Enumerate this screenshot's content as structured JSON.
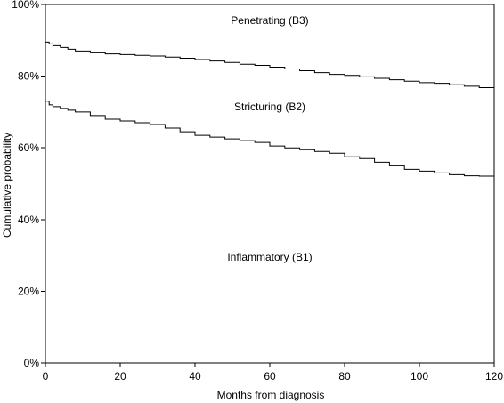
{
  "chart_data": {
    "type": "line",
    "title": "",
    "xlabel": "Months from diagnosis",
    "ylabel": "Cumulative probability",
    "xlim": [
      0,
      120
    ],
    "ylim": [
      0,
      100
    ],
    "x_ticks": [
      0,
      20,
      40,
      60,
      80,
      100,
      120
    ],
    "y_ticks": [
      0,
      20,
      40,
      60,
      80,
      100
    ],
    "y_tick_labels": [
      "0%",
      "20%",
      "40%",
      "60%",
      "80%",
      "100%"
    ],
    "line_color": "#000000",
    "series": [
      {
        "x": [
          0,
          1,
          2,
          4,
          6,
          8,
          12,
          16,
          20,
          24,
          28,
          32,
          36,
          40,
          44,
          48,
          52,
          56,
          60,
          64,
          68,
          72,
          76,
          80,
          84,
          88,
          92,
          96,
          100,
          104,
          108,
          112,
          116,
          120
        ],
        "values": [
          89.5,
          89,
          88.5,
          88,
          87.5,
          87,
          86.5,
          86.2,
          86,
          85.8,
          85.6,
          85.3,
          85,
          84.6,
          84.2,
          83.8,
          83.3,
          83,
          82.5,
          82,
          81.5,
          81,
          80.5,
          80.2,
          79.8,
          79.4,
          79,
          78.6,
          78.2,
          78,
          77.6,
          77.2,
          76.8,
          76.5
        ]
      },
      {
        "x": [
          0,
          1,
          2,
          4,
          6,
          8,
          12,
          16,
          20,
          24,
          28,
          32,
          36,
          40,
          44,
          48,
          52,
          56,
          60,
          64,
          68,
          72,
          76,
          80,
          84,
          88,
          92,
          96,
          100,
          104,
          108,
          112,
          116,
          120
        ],
        "values": [
          73,
          72,
          71.5,
          71,
          70.5,
          70,
          69,
          68,
          67.5,
          67,
          66.5,
          65.5,
          64.5,
          63.5,
          63,
          62.5,
          62,
          61.5,
          60.5,
          60,
          59.5,
          59,
          58.5,
          57.5,
          57,
          56,
          55,
          54,
          53.5,
          53,
          52.5,
          52.2,
          52.1,
          52
        ]
      }
    ],
    "annotations": [
      {
        "text": "Penetrating (B3)",
        "x": 60,
        "y": 94.5
      },
      {
        "text": "Stricturing (B2)",
        "x": 60,
        "y": 70.5
      },
      {
        "text": "Inflammatory (B1)",
        "x": 60,
        "y": 28.5
      }
    ]
  }
}
